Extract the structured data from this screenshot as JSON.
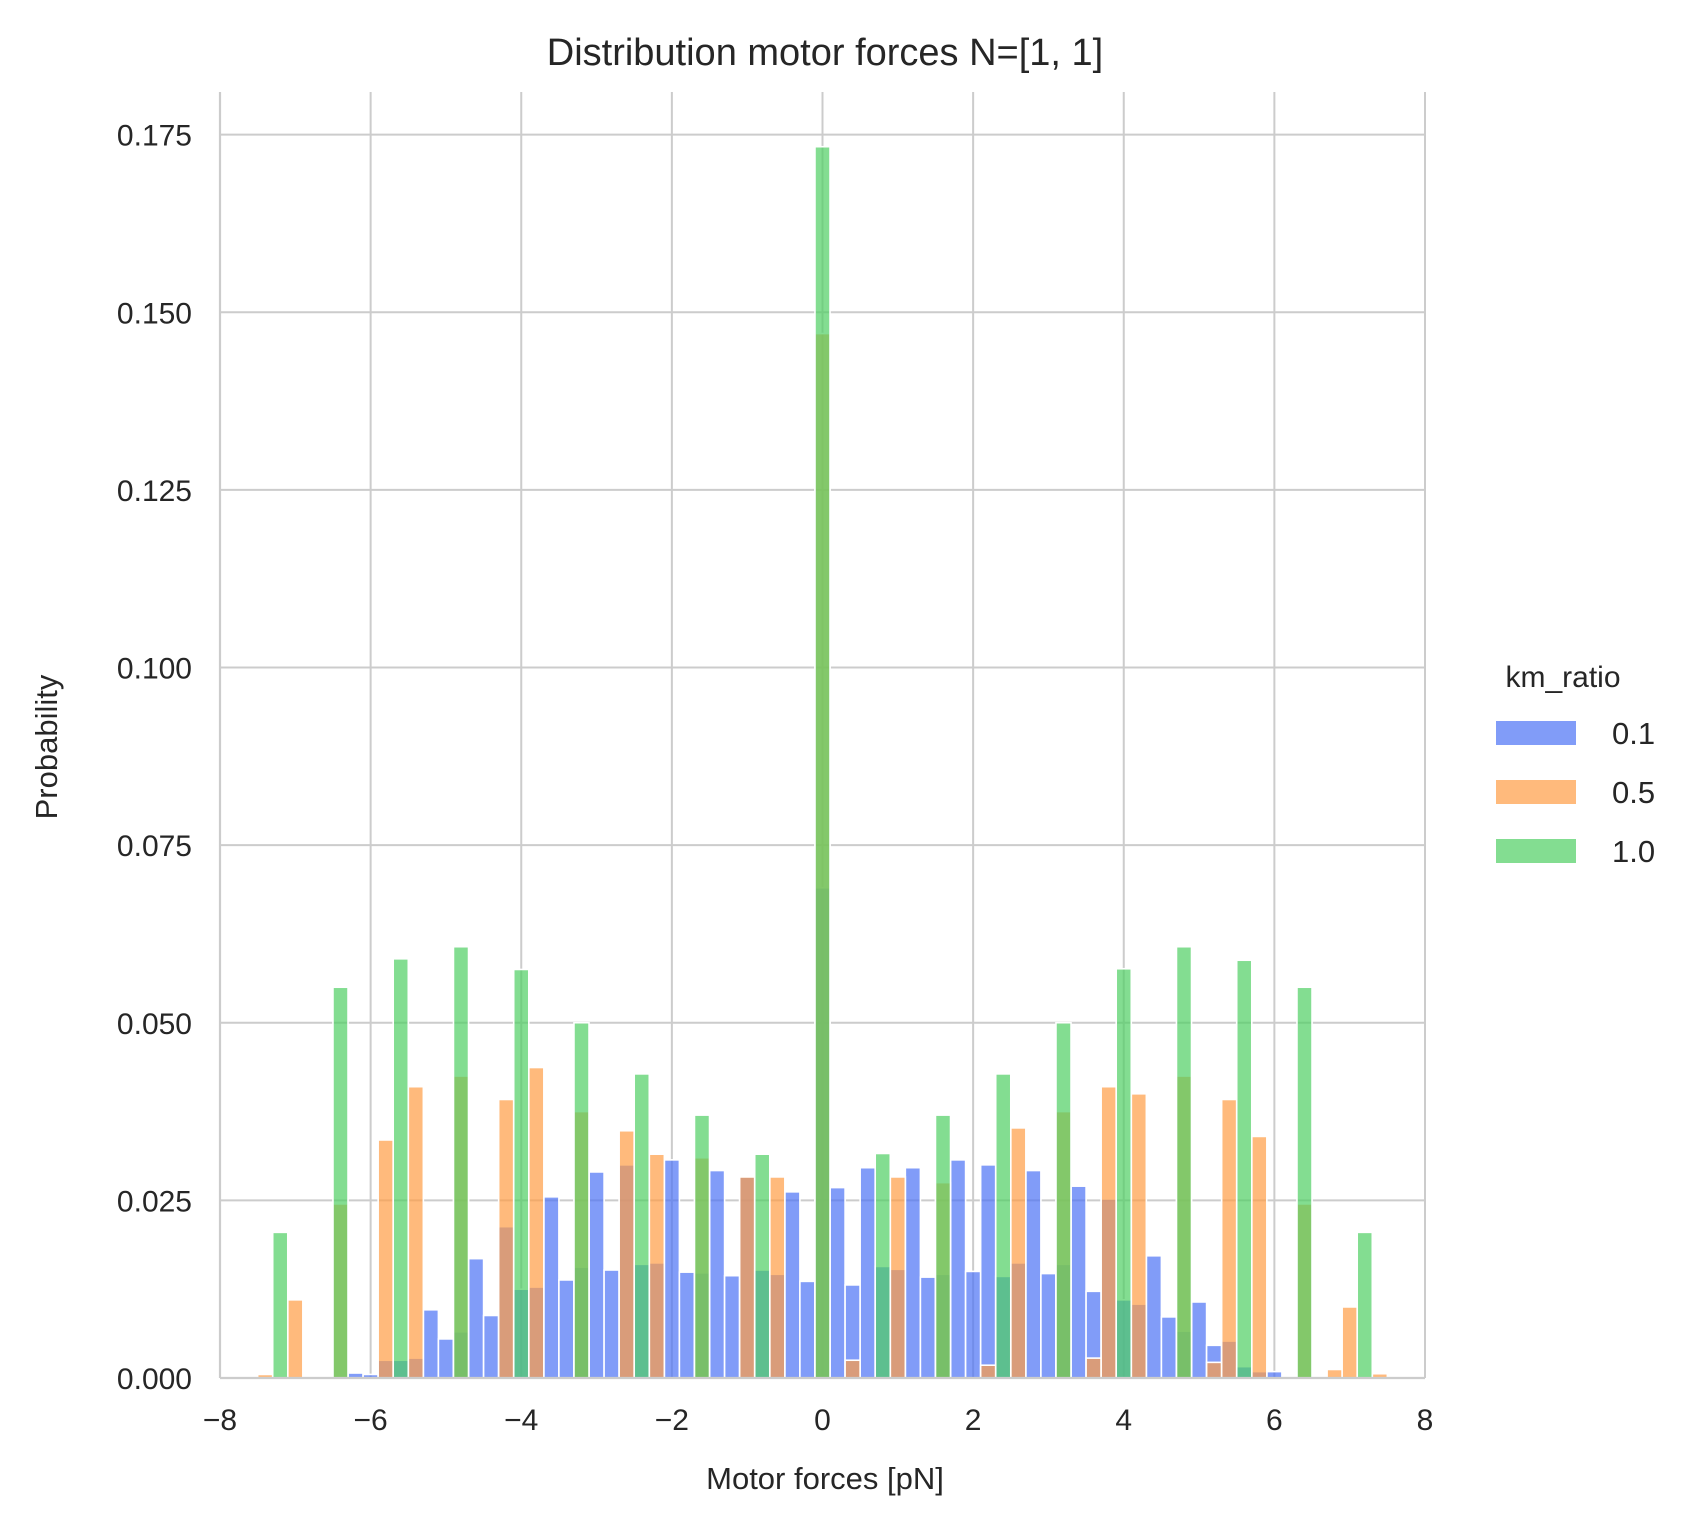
{
  "chart_data": {
    "type": "histogram",
    "title": "Distribution motor forces N=[1, 1]",
    "xlabel": "Motor forces [pN]",
    "ylabel": "Probability",
    "xlim": [
      -8.0,
      8.0
    ],
    "ylim": [
      0,
      0.181
    ],
    "xticks": [
      -8,
      -6,
      -4,
      -2,
      0,
      2,
      4,
      6,
      8
    ],
    "xtick_labels": [
      "−8",
      "−6",
      "−4",
      "−2",
      "0",
      "2",
      "4",
      "6",
      "8"
    ],
    "yticks": [
      0.0,
      0.025,
      0.05,
      0.075,
      0.1,
      0.125,
      0.15,
      0.175
    ],
    "ytick_labels": [
      "0.000",
      "0.025",
      "0.050",
      "0.075",
      "0.100",
      "0.125",
      "0.150",
      "0.175"
    ],
    "grid": true,
    "bin_width": 0.2,
    "legend": {
      "title": "km_ratio",
      "placement": "right outside"
    },
    "series": [
      {
        "name": "0.1",
        "color": "#4c72f5",
        "opacity": 0.7,
        "bins": [
          [
            -6.2,
            0.0007
          ],
          [
            -6.0,
            0.0005
          ],
          [
            -5.8,
            0.0025
          ],
          [
            -5.6,
            0.0025
          ],
          [
            -5.4,
            0.0028
          ],
          [
            -5.2,
            0.0096
          ],
          [
            -5.0,
            0.0055
          ],
          [
            -4.8,
            0.0065
          ],
          [
            -4.6,
            0.0168
          ],
          [
            -4.4,
            0.0088
          ],
          [
            -4.2,
            0.0213
          ],
          [
            -4.0,
            0.0125
          ],
          [
            -3.8,
            0.0128
          ],
          [
            -3.6,
            0.0255
          ],
          [
            -3.4,
            0.0138
          ],
          [
            -3.2,
            0.0156
          ],
          [
            -3.0,
            0.029
          ],
          [
            -2.8,
            0.0152
          ],
          [
            -2.6,
            0.03
          ],
          [
            -2.4,
            0.016
          ],
          [
            -2.2,
            0.0162
          ],
          [
            -2.0,
            0.0307
          ],
          [
            -1.8,
            0.0149
          ],
          [
            -1.6,
            0.0148
          ],
          [
            -1.4,
            0.0292
          ],
          [
            -1.2,
            0.0144
          ],
          [
            -1.0,
            0.0283
          ],
          [
            -0.8,
            0.0152
          ],
          [
            -0.6,
            0.0146
          ],
          [
            -0.4,
            0.0262
          ],
          [
            -0.2,
            0.0136
          ],
          [
            0.0,
            0.069
          ],
          [
            0.2,
            0.0268
          ],
          [
            0.4,
            0.0131
          ],
          [
            0.6,
            0.0296
          ],
          [
            0.8,
            0.0157
          ],
          [
            1.0,
            0.0153
          ],
          [
            1.2,
            0.0296
          ],
          [
            1.4,
            0.0142
          ],
          [
            1.6,
            0.0146
          ],
          [
            1.8,
            0.0307
          ],
          [
            2.0,
            0.015
          ],
          [
            2.2,
            0.03
          ],
          [
            2.4,
            0.0143
          ],
          [
            2.6,
            0.0162
          ],
          [
            2.8,
            0.0292
          ],
          [
            3.0,
            0.0147
          ],
          [
            3.2,
            0.016
          ],
          [
            3.4,
            0.027
          ],
          [
            3.6,
            0.0122
          ],
          [
            3.8,
            0.0252
          ],
          [
            4.0,
            0.011
          ],
          [
            4.2,
            0.0104
          ],
          [
            4.4,
            0.0172
          ],
          [
            4.6,
            0.0086
          ],
          [
            4.8,
            0.0066
          ],
          [
            5.0,
            0.0107
          ],
          [
            5.2,
            0.0046
          ],
          [
            5.4,
            0.0052
          ],
          [
            5.6,
            0.0016
          ],
          [
            5.8,
            0.0009
          ],
          [
            6.0,
            0.0009
          ]
        ]
      },
      {
        "name": "0.5",
        "color": "#ff9d45",
        "opacity": 0.7,
        "bins": [
          [
            -7.4,
            0.0005
          ],
          [
            -7.0,
            0.011
          ],
          [
            -6.4,
            0.0245
          ],
          [
            -5.8,
            0.0335
          ],
          [
            -5.4,
            0.041
          ],
          [
            -4.8,
            0.0425
          ],
          [
            -4.2,
            0.0392
          ],
          [
            -3.8,
            0.0437
          ],
          [
            -3.2,
            0.0375
          ],
          [
            -2.6,
            0.0348
          ],
          [
            -2.2,
            0.0315
          ],
          [
            -1.6,
            0.031
          ],
          [
            -1.0,
            0.0283
          ],
          [
            -0.6,
            0.0283
          ],
          [
            0.0,
            0.147
          ],
          [
            0.4,
            0.0025
          ],
          [
            1.0,
            0.0283
          ],
          [
            1.6,
            0.0275
          ],
          [
            2.2,
            0.0018
          ],
          [
            2.6,
            0.0352
          ],
          [
            3.2,
            0.0375
          ],
          [
            3.6,
            0.0028
          ],
          [
            3.8,
            0.041
          ],
          [
            4.2,
            0.04
          ],
          [
            4.8,
            0.0425
          ],
          [
            5.2,
            0.0022
          ],
          [
            5.4,
            0.0392
          ],
          [
            5.8,
            0.034
          ],
          [
            6.4,
            0.0245
          ],
          [
            6.8,
            0.0012
          ],
          [
            7.0,
            0.01
          ],
          [
            7.4,
            0.0006
          ]
        ]
      },
      {
        "name": "1.0",
        "color": "#4fce63",
        "opacity": 0.7,
        "bins": [
          [
            -7.2,
            0.0205
          ],
          [
            -6.4,
            0.055
          ],
          [
            -5.6,
            0.059
          ],
          [
            -4.8,
            0.0607
          ],
          [
            -4.0,
            0.0575
          ],
          [
            -3.2,
            0.05
          ],
          [
            -2.4,
            0.0428
          ],
          [
            -1.6,
            0.037
          ],
          [
            -0.8,
            0.0315
          ],
          [
            0.0,
            0.1733
          ],
          [
            0.8,
            0.0316
          ],
          [
            1.6,
            0.037
          ],
          [
            2.4,
            0.0428
          ],
          [
            3.2,
            0.05
          ],
          [
            4.0,
            0.0576
          ],
          [
            4.8,
            0.0607
          ],
          [
            5.6,
            0.0588
          ],
          [
            6.4,
            0.055
          ],
          [
            7.2,
            0.0205
          ]
        ]
      }
    ]
  }
}
